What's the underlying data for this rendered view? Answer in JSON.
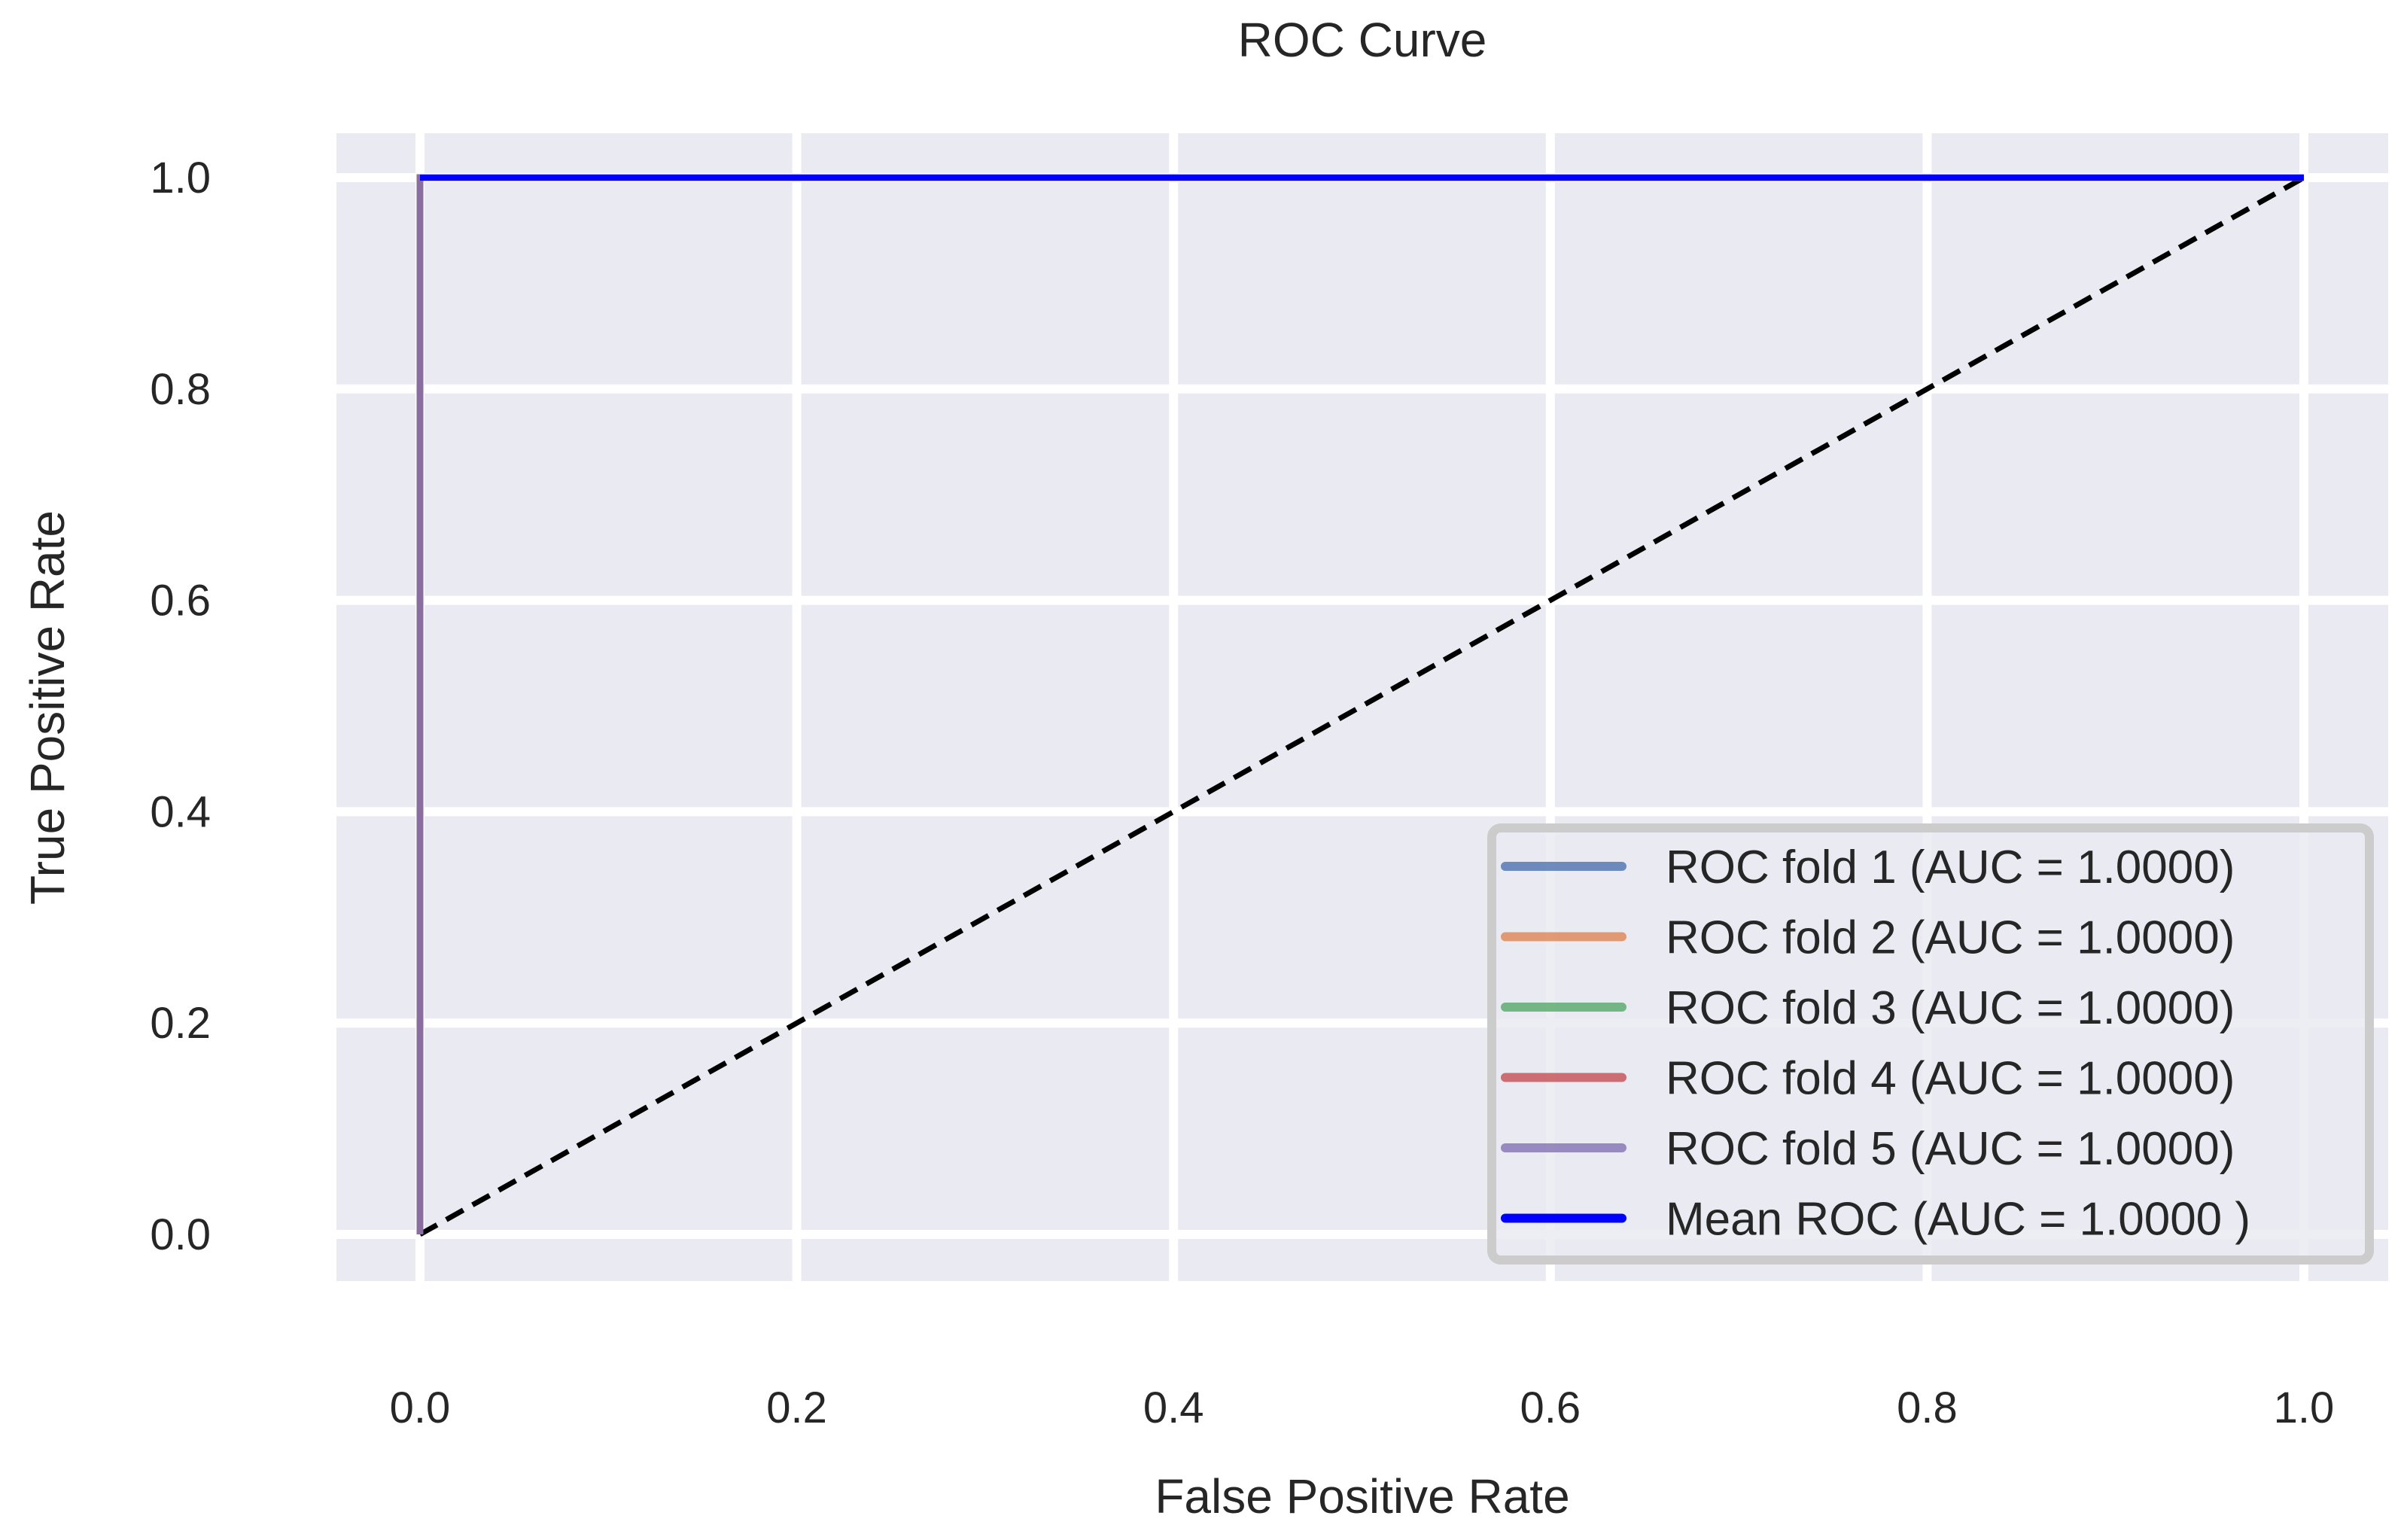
{
  "chart_data": {
    "type": "line",
    "title": "ROC Curve",
    "xlabel": "False Positive Rate",
    "ylabel": "True Positive Rate",
    "xlim": [
      0.0,
      1.0
    ],
    "ylim": [
      0.0,
      1.0
    ],
    "xticks": [
      "0.0",
      "0.2",
      "0.4",
      "0.6",
      "0.8",
      "1.0"
    ],
    "yticks": [
      "0.0",
      "0.2",
      "0.4",
      "0.6",
      "0.8",
      "1.0"
    ],
    "grid": true,
    "background": "#eaeaf2",
    "legend_position": "lower-right",
    "series": [
      {
        "name": "ROC fold 1 (AUC = 1.0000)",
        "color": "#4c72b0",
        "x": [
          0,
          0,
          1
        ],
        "y": [
          0,
          1,
          1
        ]
      },
      {
        "name": "ROC fold 2 (AUC = 1.0000)",
        "color": "#dd8452",
        "x": [
          0,
          0,
          1
        ],
        "y": [
          0,
          1,
          1
        ]
      },
      {
        "name": "ROC fold 3 (AUC = 1.0000)",
        "color": "#55a868",
        "x": [
          0,
          0,
          1
        ],
        "y": [
          0,
          1,
          1
        ]
      },
      {
        "name": "ROC fold 4 (AUC = 1.0000)",
        "color": "#c44e52",
        "x": [
          0,
          0,
          1
        ],
        "y": [
          0,
          1,
          1
        ]
      },
      {
        "name": "ROC fold 5 (AUC = 1.0000)",
        "color": "#8172b3",
        "x": [
          0,
          0,
          1
        ],
        "y": [
          0,
          1,
          1
        ]
      },
      {
        "name": "Mean ROC (AUC = 1.0000 )",
        "color": "#0000ff",
        "x": [
          0,
          1
        ],
        "y": [
          1,
          1
        ]
      }
    ],
    "reference_line": {
      "x": [
        0,
        1
      ],
      "y": [
        0,
        1
      ],
      "color": "#000000",
      "style": "dashed"
    }
  }
}
